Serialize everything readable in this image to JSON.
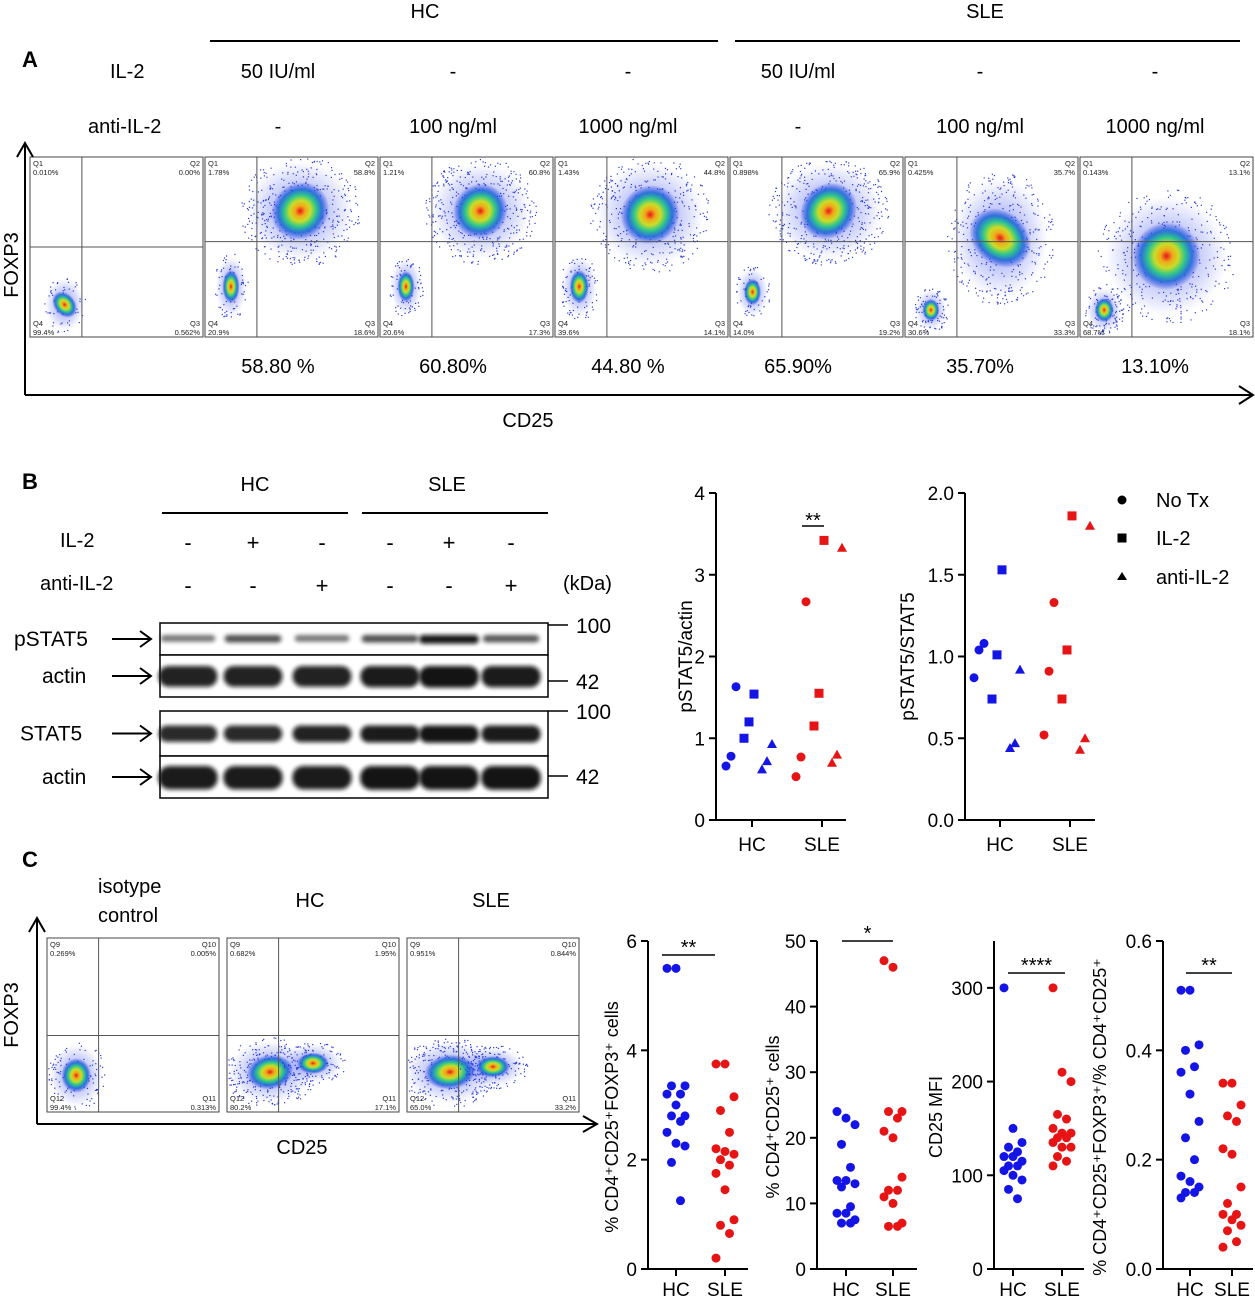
{
  "colors": {
    "hc": "#1414e6",
    "sle": "#e61414",
    "axis": "#000000",
    "blot_bg": "#ffffff",
    "band": "#1a1a1a"
  },
  "panel_a": {
    "letter": "A",
    "group_hc": "HC",
    "group_sle": "SLE",
    "il2_label": "IL-2",
    "anti_label": "anti-IL-2",
    "y_axis": "FOXP3",
    "x_axis": "CD25",
    "conditions": [
      {
        "il2": "50 IU/ml",
        "anti": "-",
        "q1": "1.78%",
        "q2": "58.8%",
        "q3": "18.6%",
        "q4": "20.9%",
        "pct": "58.80 %"
      },
      {
        "il2": "-",
        "anti": "100 ng/ml",
        "q1": "1.21%",
        "q2": "60.8%",
        "q3": "17.3%",
        "q4": "20.6%",
        "pct": "60.80%"
      },
      {
        "il2": "-",
        "anti": "1000 ng/ml",
        "q1": "1.43%",
        "q2": "44.8%",
        "q3": "14.1%",
        "q4": "39.6%",
        "pct": "44.80 %"
      },
      {
        "il2": "50 IU/ml",
        "anti": "-",
        "q1": "0.898%",
        "q2": "65.9%",
        "q3": "19.2%",
        "q4": "14.0%",
        "pct": "65.90%"
      },
      {
        "il2": "-",
        "anti": "100 ng/ml",
        "q1": "0.425%",
        "q2": "35.7%",
        "q3": "33.3%",
        "q4": "30.6%",
        "pct": "35.70%"
      },
      {
        "il2": "-",
        "anti": "1000 ng/ml",
        "q1": "0.143%",
        "q2": "13.1%",
        "q3": "18.1%",
        "q4": "68.7%",
        "pct": "13.10%"
      }
    ],
    "isotype": {
      "q1": "0.010%",
      "q2": "0.00%",
      "q3": "0.562%",
      "q4": "99.4%"
    },
    "quad_names": [
      "Q1",
      "Q2",
      "Q3",
      "Q4"
    ]
  },
  "panel_b": {
    "letter": "B",
    "group_hc": "HC",
    "group_sle": "SLE",
    "il2_label": "IL-2",
    "anti_label": "anti-IL-2",
    "kda_label": "(kDa)",
    "il2_signs": [
      "-",
      "+",
      "-",
      "-",
      "+",
      "-"
    ],
    "anti_signs": [
      "-",
      "-",
      "+",
      "-",
      "-",
      "+"
    ],
    "blot_labels": [
      "pSTAT5",
      "actin",
      "STAT5",
      "actin"
    ],
    "markers": [
      "100",
      "42",
      "100",
      "42"
    ],
    "legend": [
      "No Tx",
      "IL-2",
      "anti-IL-2"
    ]
  },
  "panel_c": {
    "letter": "C",
    "titles": [
      "isotype",
      "control",
      "HC",
      "SLE"
    ],
    "y_axis": "FOXP3",
    "x_axis": "CD25",
    "plots": [
      {
        "q9": "0.269%",
        "q10": "0.005%",
        "q11": "0.313%",
        "q12": "99.4%"
      },
      {
        "q9": "0.682%",
        "q10": "1.95%",
        "q11": "17.1%",
        "q12": "80.2%"
      },
      {
        "q9": "0.951%",
        "q10": "0.844%",
        "q11": "33.2%",
        "q12": "65.0%"
      }
    ],
    "quad_names": [
      "Q9",
      "Q10",
      "Q11",
      "Q12"
    ]
  },
  "chart_data": [
    {
      "type": "scatter",
      "title": "",
      "ylabel": "pSTAT5/actin",
      "categories": [
        "HC",
        "SLE"
      ],
      "ylim": [
        0,
        4
      ],
      "yticks": [
        "0",
        "1",
        "2",
        "3",
        "4"
      ],
      "significance": "**",
      "series": [
        {
          "name": "No Tx",
          "marker": "circle",
          "HC": [
            1.63,
            0.78,
            0.66
          ],
          "SLE": [
            2.67,
            0.77,
            0.53
          ]
        },
        {
          "name": "IL-2",
          "marker": "square",
          "HC": [
            1.54,
            1.2,
            1.0
          ],
          "SLE": [
            3.42,
            1.55,
            1.15
          ]
        },
        {
          "name": "anti-IL-2",
          "marker": "triangle",
          "HC": [
            0.93,
            0.72,
            0.62
          ],
          "SLE": [
            3.33,
            0.8,
            0.7
          ]
        }
      ]
    },
    {
      "type": "scatter",
      "title": "",
      "ylabel": "pSTAT5/STAT5",
      "categories": [
        "HC",
        "SLE"
      ],
      "ylim": [
        0,
        2
      ],
      "yticks": [
        "0.0",
        "0.5",
        "1.0",
        "1.5",
        "2.0"
      ],
      "series": [
        {
          "name": "No Tx",
          "marker": "circle",
          "HC": [
            1.08,
            1.04,
            0.87
          ],
          "SLE": [
            1.33,
            0.91,
            0.52
          ]
        },
        {
          "name": "IL-2",
          "marker": "square",
          "HC": [
            1.53,
            1.01,
            0.74
          ],
          "SLE": [
            1.86,
            1.04,
            0.74
          ]
        },
        {
          "name": "anti-IL-2",
          "marker": "triangle",
          "HC": [
            0.92,
            0.47,
            0.44
          ],
          "SLE": [
            1.8,
            0.5,
            0.43
          ]
        }
      ]
    },
    {
      "type": "scatter",
      "ylabel": "% CD4⁺CD25⁺FOXP3⁺ cells",
      "categories": [
        "HC",
        "SLE"
      ],
      "ylim": [
        0,
        6
      ],
      "yticks": [
        "0",
        "2",
        "4",
        "6"
      ],
      "significance": "**",
      "series": [
        {
          "name": "HC",
          "values": [
            5.5,
            5.5,
            3.35,
            3.35,
            3.2,
            3.2,
            3.0,
            2.8,
            2.8,
            2.7,
            2.5,
            2.3,
            2.25,
            1.95,
            1.25
          ]
        },
        {
          "name": "SLE",
          "values": [
            3.75,
            3.75,
            3.15,
            2.9,
            2.5,
            2.2,
            2.15,
            2.1,
            2.0,
            1.9,
            1.75,
            1.45,
            0.9,
            0.8,
            0.65,
            0.2
          ]
        }
      ]
    },
    {
      "type": "scatter",
      "ylabel": "% CD4⁺CD25⁺ cells",
      "categories": [
        "HC",
        "SLE"
      ],
      "ylim": [
        0,
        50
      ],
      "yticks": [
        "0",
        "10",
        "20",
        "30",
        "40",
        "50"
      ],
      "significance": "*",
      "series": [
        {
          "name": "HC",
          "values": [
            24,
            23,
            22,
            19,
            15.5,
            13.5,
            13.5,
            13,
            12.5,
            9.5,
            8.5,
            8.5,
            7.5,
            7,
            7
          ]
        },
        {
          "name": "SLE",
          "values": [
            47,
            46,
            24,
            24,
            23,
            21,
            20,
            14,
            12,
            12,
            11,
            10,
            7,
            6.5,
            6.5
          ]
        }
      ]
    },
    {
      "type": "scatter",
      "ylabel": "CD25 MFI",
      "categories": [
        "HC",
        "SLE"
      ],
      "ylim": [
        0,
        350
      ],
      "yticks": [
        "0",
        "100",
        "200",
        "300"
      ],
      "significance": "****",
      "series": [
        {
          "name": "HC",
          "values": [
            300,
            150,
            135,
            130,
            125,
            120,
            120,
            115,
            110,
            110,
            105,
            100,
            95,
            85,
            75
          ]
        },
        {
          "name": "SLE",
          "values": [
            300,
            210,
            200,
            165,
            160,
            150,
            145,
            145,
            140,
            140,
            135,
            130,
            130,
            120,
            115,
            110
          ]
        }
      ]
    },
    {
      "type": "scatter",
      "ylabel": "% CD4⁺CD25⁺FOXP3⁺/% CD4⁺CD25⁺",
      "categories": [
        "HC",
        "SLE"
      ],
      "ylim": [
        0,
        0.6
      ],
      "yticks": [
        "0.0",
        "0.2",
        "0.4",
        "0.6"
      ],
      "significance": "**",
      "series": [
        {
          "name": "HC",
          "values": [
            0.51,
            0.51,
            0.41,
            0.4,
            0.37,
            0.36,
            0.32,
            0.27,
            0.24,
            0.2,
            0.17,
            0.16,
            0.15,
            0.14,
            0.14,
            0.13
          ]
        },
        {
          "name": "SLE",
          "values": [
            0.34,
            0.34,
            0.3,
            0.28,
            0.27,
            0.22,
            0.21,
            0.15,
            0.12,
            0.1,
            0.1,
            0.09,
            0.08,
            0.07,
            0.05,
            0.04
          ]
        }
      ]
    }
  ]
}
